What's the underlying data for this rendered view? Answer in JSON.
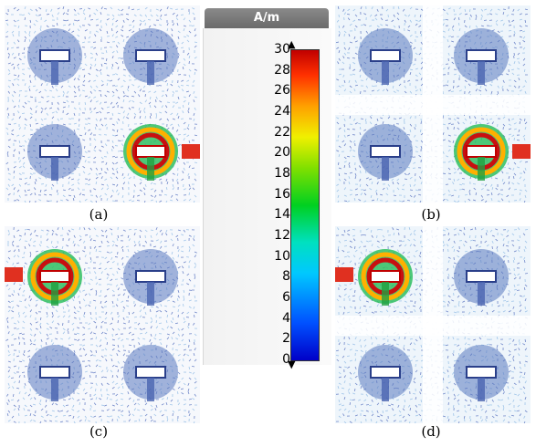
{
  "panels": [
    {
      "id": "a",
      "caption": "(a)",
      "excited": "bottom-right",
      "blocked": false
    },
    {
      "id": "b",
      "caption": "(b)",
      "excited": "bottom-right",
      "blocked": true
    },
    {
      "id": "c",
      "caption": "(c)",
      "excited": "top-left",
      "blocked": false
    },
    {
      "id": "d",
      "caption": "(d)",
      "excited": "top-left",
      "blocked": true
    }
  ],
  "legend": {
    "unit": "A/m",
    "ticks": [
      "30",
      "28",
      "26",
      "24",
      "22",
      "20",
      "18",
      "16",
      "14",
      "12",
      "10",
      "8",
      "6",
      "4",
      "2",
      "0"
    ],
    "range": [
      0,
      30
    ],
    "colors": {
      "low": "#0000c8",
      "mid": "#00d020",
      "high": "#c00000"
    }
  }
}
